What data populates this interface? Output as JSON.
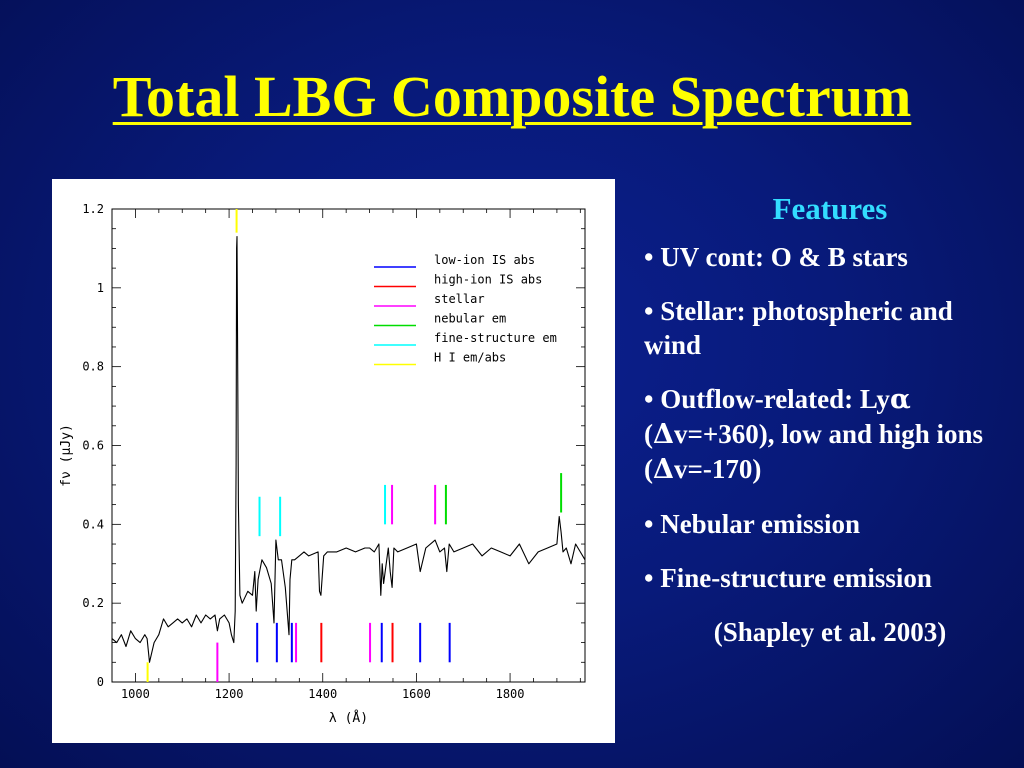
{
  "slide": {
    "title": "Total LBG Composite Spectrum"
  },
  "features": {
    "heading": "Features",
    "bullets": [
      {
        "pre": "UV cont: O & B stars"
      },
      {
        "pre": "Stellar: photospheric and wind"
      },
      {
        "pre": "Outflow-related: Ly",
        "g1": "α",
        "mid": " (",
        "g2": "Δ",
        "post": "v=+360), low and high ions (",
        "g3": "Δ",
        "tail": "v=-170)"
      },
      {
        "pre": "Nebular emission"
      },
      {
        "pre": "Fine-structure emission"
      }
    ],
    "citation": "(Shapley et al. 2003)"
  },
  "chart_data": {
    "type": "line",
    "xlabel": "λ (Å)",
    "ylabel": "fν (μJy)",
    "xlim": [
      950,
      1960
    ],
    "ylim": [
      0,
      1.2
    ],
    "x_ticks": [
      1000,
      1200,
      1400,
      1600,
      1800
    ],
    "y_ticks": [
      0,
      0.2,
      0.4,
      0.6,
      0.8,
      1,
      1.2
    ],
    "y_tick_labels": [
      "0",
      "0.2",
      "0.4",
      "0.6",
      "0.8",
      "1",
      "1.2"
    ],
    "series": [
      {
        "values_note": "",
        "x": [
          950,
          960,
          970,
          980,
          990,
          1000,
          1010,
          1020,
          1025,
          1030,
          1040,
          1050,
          1060,
          1070,
          1080,
          1090,
          1100,
          1110,
          1120,
          1130,
          1140,
          1150,
          1160,
          1170,
          1175,
          1180,
          1190,
          1200,
          1205,
          1210,
          1213,
          1215,
          1216,
          1217,
          1218,
          1220,
          1223,
          1228,
          1240,
          1250,
          1255,
          1258,
          1262,
          1270,
          1280,
          1290,
          1296,
          1300,
          1305,
          1312,
          1320,
          1328,
          1330,
          1334,
          1340,
          1350,
          1360,
          1370,
          1390,
          1393,
          1396,
          1402,
          1410,
          1430,
          1450,
          1470,
          1490,
          1500,
          1510,
          1520,
          1524,
          1527,
          1530,
          1540,
          1544,
          1548,
          1552,
          1560,
          1580,
          1600,
          1608,
          1620,
          1640,
          1650,
          1660,
          1665,
          1670,
          1680,
          1700,
          1720,
          1740,
          1760,
          1780,
          1800,
          1820,
          1840,
          1860,
          1880,
          1900,
          1905,
          1909,
          1913,
          1920,
          1930,
          1940,
          1950,
          1960
        ],
        "y": [
          0.11,
          0.1,
          0.12,
          0.09,
          0.13,
          0.11,
          0.1,
          0.12,
          0.11,
          0.05,
          0.1,
          0.12,
          0.16,
          0.14,
          0.15,
          0.16,
          0.15,
          0.16,
          0.14,
          0.17,
          0.15,
          0.17,
          0.16,
          0.17,
          0.13,
          0.16,
          0.17,
          0.15,
          0.12,
          0.1,
          0.18,
          0.55,
          1.1,
          1.13,
          0.9,
          0.45,
          0.22,
          0.2,
          0.23,
          0.22,
          0.28,
          0.18,
          0.26,
          0.31,
          0.29,
          0.25,
          0.15,
          0.36,
          0.31,
          0.31,
          0.24,
          0.12,
          0.26,
          0.31,
          0.31,
          0.32,
          0.33,
          0.32,
          0.33,
          0.23,
          0.22,
          0.32,
          0.33,
          0.33,
          0.34,
          0.33,
          0.34,
          0.34,
          0.33,
          0.35,
          0.22,
          0.3,
          0.25,
          0.34,
          0.28,
          0.24,
          0.34,
          0.33,
          0.34,
          0.35,
          0.28,
          0.34,
          0.36,
          0.33,
          0.34,
          0.28,
          0.35,
          0.33,
          0.34,
          0.35,
          0.32,
          0.34,
          0.33,
          0.32,
          0.35,
          0.3,
          0.33,
          0.34,
          0.35,
          0.42,
          0.38,
          0.33,
          0.34,
          0.3,
          0.35,
          0.33,
          0.31
        ],
        "color": "#000000"
      }
    ],
    "legend": {
      "placement": "top-right",
      "entries": [
        {
          "label": "low-ion IS abs",
          "color": "#0000ff"
        },
        {
          "label": "high-ion IS abs",
          "color": "#ff0000"
        },
        {
          "label": "stellar",
          "color": "#ff00ff"
        },
        {
          "label": "nebular em",
          "color": "#00dd00"
        },
        {
          "label": "fine-structure em",
          "color": "#00ffff"
        },
        {
          "label": "H I em/abs",
          "color": "#ffff00"
        }
      ]
    },
    "feature_markers": [
      {
        "x": 1026,
        "kind": "H I em/abs",
        "color": "#ffff00",
        "y_range": [
          0.0,
          0.05
        ]
      },
      {
        "x": 1216,
        "kind": "H I em/abs",
        "color": "#ffff00",
        "y_range": [
          1.14,
          1.2
        ]
      },
      {
        "x": 1175,
        "kind": "stellar",
        "color": "#ff00ff",
        "y_range": [
          0.0,
          0.1
        ]
      },
      {
        "x": 1260,
        "kind": "low-ion IS abs",
        "color": "#0000ff",
        "y_range": [
          0.05,
          0.15
        ]
      },
      {
        "x": 1302,
        "kind": "low-ion IS abs",
        "color": "#0000ff",
        "y_range": [
          0.05,
          0.15
        ]
      },
      {
        "x": 1334,
        "kind": "low-ion IS abs",
        "color": "#0000ff",
        "y_range": [
          0.05,
          0.15
        ]
      },
      {
        "x": 1343,
        "kind": "stellar",
        "color": "#ff00ff",
        "y_range": [
          0.05,
          0.15
        ]
      },
      {
        "x": 1397,
        "kind": "high-ion IS abs",
        "color": "#ff0000",
        "y_range": [
          0.05,
          0.15
        ]
      },
      {
        "x": 1501,
        "kind": "stellar",
        "color": "#ff00ff",
        "y_range": [
          0.05,
          0.15
        ]
      },
      {
        "x": 1526,
        "kind": "low-ion IS abs",
        "color": "#0000ff",
        "y_range": [
          0.05,
          0.15
        ]
      },
      {
        "x": 1549,
        "kind": "high-ion IS abs",
        "color": "#ff0000",
        "y_range": [
          0.05,
          0.15
        ]
      },
      {
        "x": 1608,
        "kind": "low-ion IS abs",
        "color": "#0000ff",
        "y_range": [
          0.05,
          0.15
        ]
      },
      {
        "x": 1671,
        "kind": "low-ion IS abs",
        "color": "#0000ff",
        "y_range": [
          0.05,
          0.15
        ]
      },
      {
        "x": 1265,
        "kind": "fine-structure em",
        "color": "#00ffff",
        "y_range": [
          0.37,
          0.47
        ]
      },
      {
        "x": 1309,
        "kind": "fine-structure em",
        "color": "#00ffff",
        "y_range": [
          0.37,
          0.47
        ]
      },
      {
        "x": 1533,
        "kind": "fine-structure em",
        "color": "#00ffff",
        "y_range": [
          0.4,
          0.5
        ]
      },
      {
        "x": 1548,
        "kind": "stellar",
        "color": "#ff00ff",
        "y_range": [
          0.4,
          0.5
        ]
      },
      {
        "x": 1640,
        "kind": "stellar",
        "color": "#ff00ff",
        "y_range": [
          0.4,
          0.5
        ]
      },
      {
        "x": 1663,
        "kind": "nebular em",
        "color": "#00dd00",
        "y_range": [
          0.4,
          0.5
        ]
      },
      {
        "x": 1909,
        "kind": "nebular em",
        "color": "#00dd00",
        "y_range": [
          0.43,
          0.53
        ]
      }
    ]
  }
}
